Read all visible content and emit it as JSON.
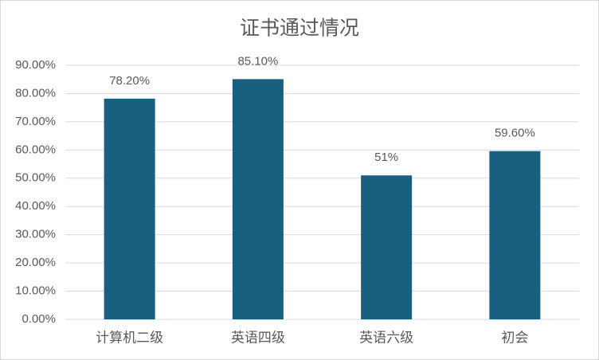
{
  "chart_data": {
    "type": "bar",
    "title": "证书通过情况",
    "categories": [
      "计算机二级",
      "英语四级",
      "英语六级",
      "初会"
    ],
    "values": [
      78.2,
      85.1,
      51,
      59.6
    ],
    "value_labels": [
      "78.20%",
      "85.10%",
      "51%",
      "59.60%"
    ],
    "color": "#17607f",
    "ylim": [
      0,
      90
    ],
    "yticks": [
      {
        "value": 0,
        "label": "0.00%"
      },
      {
        "value": 10,
        "label": "10.00%"
      },
      {
        "value": 20,
        "label": "20.00%"
      },
      {
        "value": 30,
        "label": "30.00%"
      },
      {
        "value": 40,
        "label": "40.00%"
      },
      {
        "value": 50,
        "label": "50.00%"
      },
      {
        "value": 60,
        "label": "60.00%"
      },
      {
        "value": 70,
        "label": "70.00%"
      },
      {
        "value": 80,
        "label": "80.00%"
      },
      {
        "value": 90,
        "label": "90.00%"
      }
    ],
    "grid": true
  }
}
